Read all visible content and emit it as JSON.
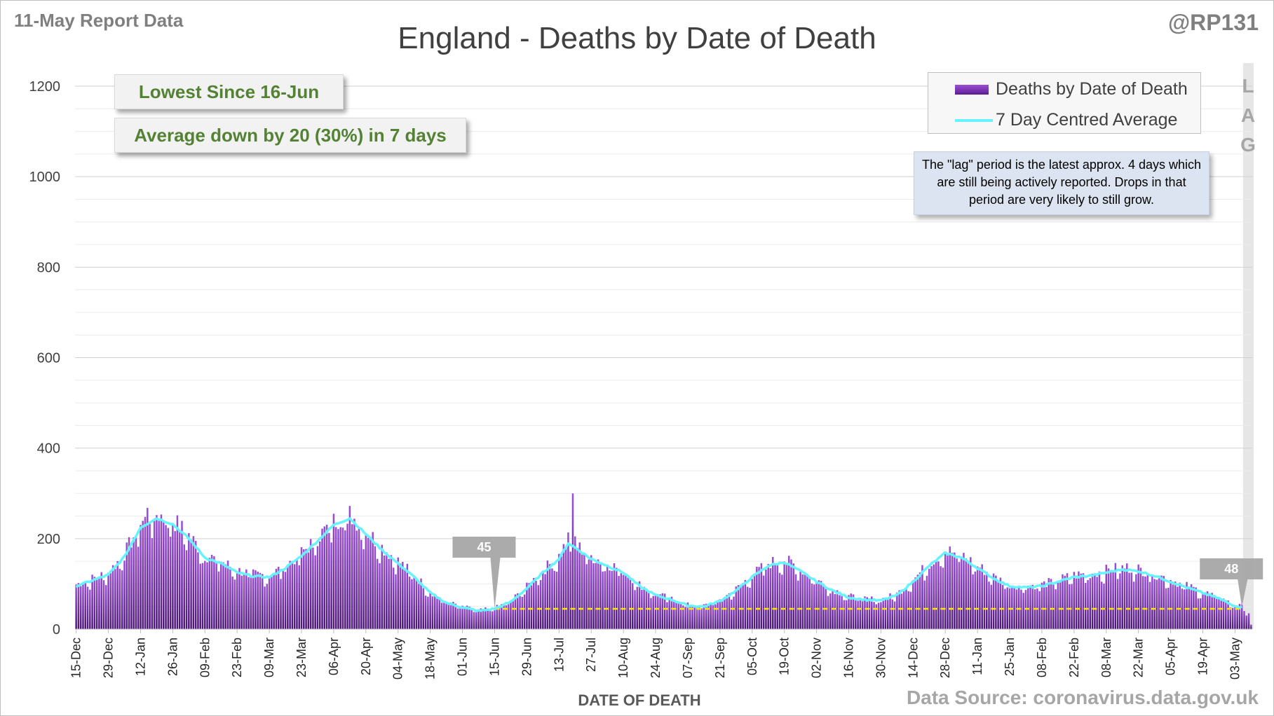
{
  "report_label": "11-May Report Data",
  "handle": "@RP131",
  "source_text": "Data Source: coronavirus.data.gov.uk",
  "callouts": {
    "lowest": "Lowest Since 16-Jun",
    "average": "Average down by 20 (30%) in 7 days"
  },
  "legend": {
    "bars": "Deaths by Date of Death",
    "line": "7 Day Centred Average"
  },
  "lag_letters": [
    "L",
    "A",
    "G"
  ],
  "lag_note": "The \"lag\" period is the latest approx. 4 days which are still being actively reported. Drops in that period are very likely to still grow.",
  "colors": {
    "bar_top": "#9b4fd6",
    "bar_bottom": "#4b1478",
    "average_line": "#66f2ff",
    "reference_line": "#ffe600",
    "callout_text": "#548235",
    "marker": "#a6a6a6"
  },
  "chart_data": {
    "type": "bar",
    "title": "England - Deaths by Date of Death",
    "xlabel": "DATE OF DEATH",
    "ylabel": "",
    "ylim": [
      0,
      1200
    ],
    "yticks": [
      0,
      200,
      400,
      600,
      800,
      1000,
      1200
    ],
    "grid": true,
    "legend_position": "top-right",
    "x_start": "15-Dec",
    "x_end": "10-May",
    "xtick_labels": [
      "15-Dec",
      "29-Dec",
      "12-Jan",
      "26-Jan",
      "09-Feb",
      "23-Feb",
      "09-Mar",
      "23-Mar",
      "06-Apr",
      "20-Apr",
      "04-May",
      "18-May",
      "01-Jun",
      "15-Jun",
      "29-Jun",
      "13-Jul",
      "27-Jul",
      "10-Aug",
      "24-Aug",
      "07-Sep",
      "21-Sep",
      "05-Oct",
      "19-Oct",
      "02-Nov",
      "16-Nov",
      "30-Nov",
      "14-Dec",
      "28-Dec",
      "11-Jan",
      "25-Jan",
      "08-Feb",
      "22-Feb",
      "08-Mar",
      "22-Mar",
      "05-Apr",
      "19-Apr",
      "03-May"
    ],
    "series": [
      {
        "name": "7 Day Centred Average",
        "kind": "line",
        "points": [
          [
            "15-Dec",
            95
          ],
          [
            "29-Dec",
            120
          ],
          [
            "05-Jan",
            160
          ],
          [
            "12-Jan",
            225
          ],
          [
            "19-Jan",
            245
          ],
          [
            "26-Jan",
            232
          ],
          [
            "02-Feb",
            200
          ],
          [
            "09-Feb",
            158
          ],
          [
            "16-Feb",
            145
          ],
          [
            "23-Feb",
            125
          ],
          [
            "02-Mar",
            117
          ],
          [
            "09-Mar",
            115
          ],
          [
            "16-Mar",
            135
          ],
          [
            "23-Mar",
            162
          ],
          [
            "30-Mar",
            195
          ],
          [
            "06-Apr",
            230
          ],
          [
            "13-Apr",
            245
          ],
          [
            "20-Apr",
            210
          ],
          [
            "27-Apr",
            175
          ],
          [
            "04-May",
            145
          ],
          [
            "11-May",
            115
          ],
          [
            "18-May",
            80
          ],
          [
            "25-May",
            58
          ],
          [
            "01-Jun",
            48
          ],
          [
            "08-Jun",
            40
          ],
          [
            "15-Jun",
            45
          ],
          [
            "22-Jun",
            60
          ],
          [
            "29-Jun",
            90
          ],
          [
            "06-Jul",
            125
          ],
          [
            "13-Jul",
            155
          ],
          [
            "17-Jul",
            190
          ],
          [
            "20-Jul",
            180
          ],
          [
            "27-Jul",
            155
          ],
          [
            "03-Aug",
            140
          ],
          [
            "10-Aug",
            125
          ],
          [
            "17-Aug",
            95
          ],
          [
            "24-Aug",
            75
          ],
          [
            "31-Aug",
            65
          ],
          [
            "07-Sep",
            52
          ],
          [
            "14-Sep",
            50
          ],
          [
            "21-Sep",
            62
          ],
          [
            "28-Sep",
            85
          ],
          [
            "05-Oct",
            115
          ],
          [
            "12-Oct",
            140
          ],
          [
            "19-Oct",
            148
          ],
          [
            "26-Oct",
            128
          ],
          [
            "02-Nov",
            105
          ],
          [
            "09-Nov",
            85
          ],
          [
            "16-Nov",
            70
          ],
          [
            "23-Nov",
            65
          ],
          [
            "30-Nov",
            63
          ],
          [
            "07-Dec",
            75
          ],
          [
            "14-Dec",
            105
          ],
          [
            "21-Dec",
            140
          ],
          [
            "28-Dec",
            168
          ],
          [
            "04-Jan",
            158
          ],
          [
            "11-Jan",
            135
          ],
          [
            "18-Jan",
            112
          ],
          [
            "25-Jan",
            95
          ],
          [
            "01-Feb",
            92
          ],
          [
            "08-Feb",
            95
          ],
          [
            "15-Feb",
            105
          ],
          [
            "22-Feb",
            115
          ],
          [
            "01-Mar",
            118
          ],
          [
            "08-Mar",
            125
          ],
          [
            "15-Mar",
            132
          ],
          [
            "22-Mar",
            128
          ],
          [
            "29-Mar",
            118
          ],
          [
            "05-Apr",
            105
          ],
          [
            "12-Apr",
            92
          ],
          [
            "19-Apr",
            80
          ],
          [
            "26-Apr",
            68
          ],
          [
            "01-May",
            55
          ],
          [
            "06-May",
            48
          ]
        ]
      },
      {
        "name": "Deaths by Date of Death",
        "kind": "bar",
        "notable_values": [
          [
            "19-Jul",
            300
          ],
          [
            "20-Jul",
            205
          ],
          [
            "15-Jan",
            268
          ]
        ],
        "last_values": [
          [
            "07-May",
            40
          ],
          [
            "08-May",
            30
          ],
          [
            "09-May",
            35
          ],
          [
            "10-May",
            10
          ]
        ]
      }
    ],
    "reference_line": {
      "value": 45,
      "from": "15-Jun",
      "to": "06-May"
    },
    "markers": [
      {
        "label": "45",
        "date": "15-Jun",
        "value": 45
      },
      {
        "label": "48",
        "date": "06-May",
        "value": 48
      }
    ],
    "lag_period": {
      "from": "07-May",
      "to": "10-May"
    }
  }
}
